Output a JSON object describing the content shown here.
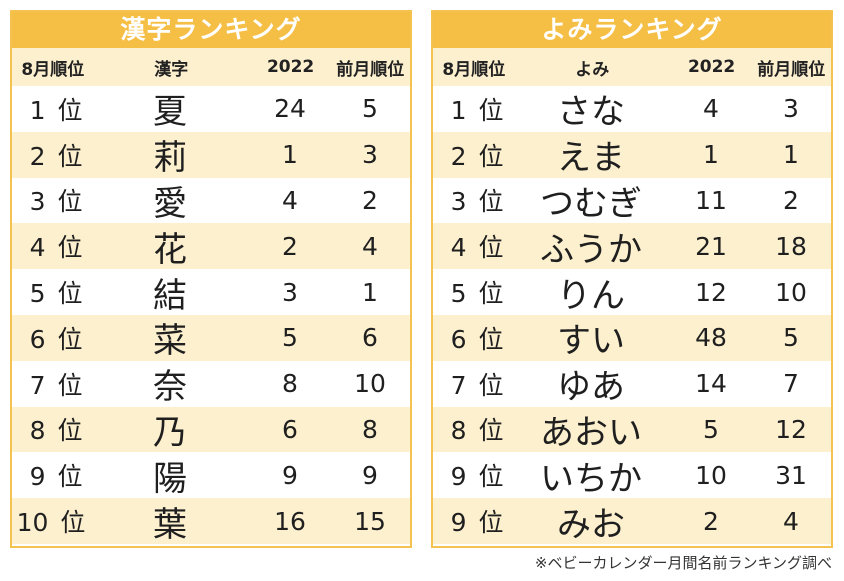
{
  "kanji_ranking": {
    "title": "漢字ランキング",
    "headers": [
      "8月順位",
      "漢字",
      "2022",
      "前月順位"
    ],
    "rows": [
      {
        "rank": "1",
        "suffix": "位",
        "name": "夏",
        "y2022": "24",
        "prev": "5"
      },
      {
        "rank": "2",
        "suffix": "位",
        "name": "莉",
        "y2022": "1",
        "prev": "3"
      },
      {
        "rank": "3",
        "suffix": "位",
        "name": "愛",
        "y2022": "4",
        "prev": "2"
      },
      {
        "rank": "4",
        "suffix": "位",
        "name": "花",
        "y2022": "2",
        "prev": "4"
      },
      {
        "rank": "5",
        "suffix": "位",
        "name": "結",
        "y2022": "3",
        "prev": "1"
      },
      {
        "rank": "6",
        "suffix": "位",
        "name": "菜",
        "y2022": "5",
        "prev": "6"
      },
      {
        "rank": "7",
        "suffix": "位",
        "name": "奈",
        "y2022": "8",
        "prev": "10"
      },
      {
        "rank": "8",
        "suffix": "位",
        "name": "乃",
        "y2022": "6",
        "prev": "8"
      },
      {
        "rank": "9",
        "suffix": "位",
        "name": "陽",
        "y2022": "9",
        "prev": "9"
      },
      {
        "rank": "10",
        "suffix": "位",
        "name": "葉",
        "y2022": "16",
        "prev": "15"
      }
    ]
  },
  "yomi_ranking": {
    "title": "よみランキング",
    "headers": [
      "8月順位",
      "よみ",
      "2022",
      "前月順位"
    ],
    "rows": [
      {
        "rank": "1",
        "suffix": "位",
        "name": "さな",
        "y2022": "4",
        "prev": "3"
      },
      {
        "rank": "2",
        "suffix": "位",
        "name": "えま",
        "y2022": "1",
        "prev": "1"
      },
      {
        "rank": "3",
        "suffix": "位",
        "name": "つむぎ",
        "y2022": "11",
        "prev": "2"
      },
      {
        "rank": "4",
        "suffix": "位",
        "name": "ふうか",
        "y2022": "21",
        "prev": "18"
      },
      {
        "rank": "5",
        "suffix": "位",
        "name": "りん",
        "y2022": "12",
        "prev": "10"
      },
      {
        "rank": "6",
        "suffix": "位",
        "name": "すい",
        "y2022": "48",
        "prev": "5"
      },
      {
        "rank": "7",
        "suffix": "位",
        "name": "ゆあ",
        "y2022": "14",
        "prev": "7"
      },
      {
        "rank": "8",
        "suffix": "位",
        "name": "あおい",
        "y2022": "5",
        "prev": "12"
      },
      {
        "rank": "9",
        "suffix": "位",
        "name": "いちか",
        "y2022": "10",
        "prev": "31"
      },
      {
        "rank": "9",
        "suffix": "位",
        "name": "みお",
        "y2022": "2",
        "prev": "4"
      }
    ]
  },
  "footnote": "※ベビーカレンダー月間名前ランキング調べ",
  "colors": {
    "accent": "#f5bf45",
    "stripe": "#fdf0cf",
    "border": "#f3c250"
  }
}
